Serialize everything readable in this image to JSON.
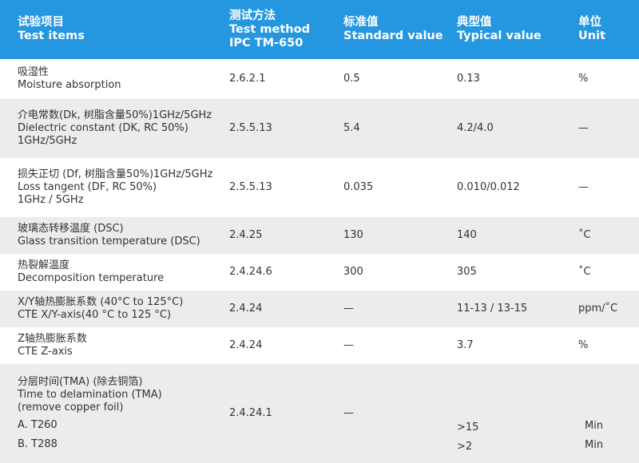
{
  "header": {
    "col1": [
      "试验项目",
      "Test items"
    ],
    "col2": [
      "测试方法",
      "Test method",
      "IPC TM-650"
    ],
    "col3": [
      "标准值",
      "Standard value"
    ],
    "col4": [
      "典型值",
      "Typical value"
    ],
    "col5": [
      "单位",
      "Unit"
    ]
  },
  "rows": [
    {
      "item": [
        "吸湿性",
        "Moisture absorption"
      ],
      "method": "2.6.2.1",
      "standard": "0.5",
      "typical": "0.13",
      "unit": "%"
    },
    {
      "item": [
        "介电常数(Dk, 树脂含量50%)1GHz/5GHz",
        "Dielectric constant (DK, RC 50%)",
        "1GHz/5GHz"
      ],
      "method": "2.5.5.13",
      "standard": "5.4",
      "typical": "4.2/4.0",
      "unit": "—"
    },
    {
      "item": [
        "损失正切 (Df, 树脂含量50%)1GHz/5GHz",
        "Loss tangent (DF, RC 50%)",
        "1GHz / 5GHz"
      ],
      "method": "2.5.5.13",
      "standard": "0.035",
      "typical": "0.010/0.012",
      "unit": "—"
    },
    {
      "item": [
        "玻璃态转移温度 (DSC)",
        "Glass transition temperature (DSC)"
      ],
      "method": "2.4.25",
      "standard": "130",
      "typical": "140",
      "unit": "˚C"
    },
    {
      "item": [
        "热裂解温度",
        "Decomposition temperature"
      ],
      "method": "2.4.24.6",
      "standard": "300",
      "typical": "305",
      "unit": "˚C"
    },
    {
      "item": [
        "X/Y轴热膨胀系数 (40°C to 125°C)",
        "CTE X/Y-axis(40 °C to 125 °C)"
      ],
      "method": "2.4.24",
      "standard": "—",
      "typical": "11-13 / 13-15",
      "unit": "ppm/˚C"
    },
    {
      "item": [
        "Z轴热膨胀系数",
        "CTE Z-axis"
      ],
      "method": "2.4.24",
      "standard": "—",
      "typical": "3.7",
      "unit": "%"
    },
    {
      "item": [
        "分层时间(TMA) (除去铜箔)",
        "Time to delamination (TMA)",
        "(remove copper foil)"
      ],
      "sub_a": "A. T260",
      "sub_b": "B. T288",
      "method": "2.4.24.1",
      "standard": "—",
      "typical_a": ">15",
      "typical_b": ">2",
      "unit_a": "Min",
      "unit_b": "Min"
    }
  ]
}
